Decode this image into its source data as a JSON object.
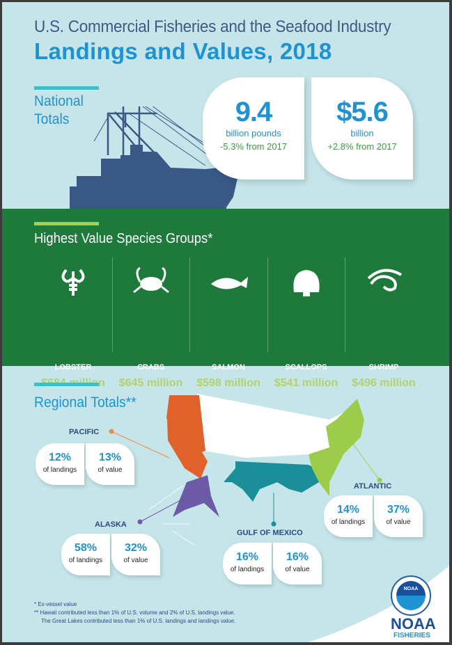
{
  "header": {
    "subtitle": "U.S. Commercial Fisheries and the Seafood Industry",
    "title": "Landings and Values, 2018"
  },
  "national": {
    "heading_line1": "National",
    "heading_line2": "Totals",
    "landings": {
      "value": "9.4",
      "unit": "billion pounds",
      "change": "-5.3% from 2017"
    },
    "value": {
      "value": "$5.6",
      "unit": "billion",
      "change": "+2.8% from 2017"
    }
  },
  "species": {
    "heading": "Highest Value Species Groups*",
    "items": [
      {
        "name": "LOBSTER",
        "value": "$684 million",
        "icon": "lobster-icon"
      },
      {
        "name": "CRABS",
        "value": "$645 million",
        "icon": "crab-icon"
      },
      {
        "name": "SALMON",
        "value": "$598 million",
        "icon": "salmon-icon"
      },
      {
        "name": "SCALLOPS",
        "value": "$541 million",
        "icon": "scallop-icon"
      },
      {
        "name": "SHRIMP",
        "value": "$496 million",
        "icon": "shrimp-icon"
      }
    ]
  },
  "regional": {
    "heading": "Regional Totals**",
    "regions": [
      {
        "name": "PACIFIC",
        "landings": "12%",
        "value": "13%",
        "color": "#e0622a"
      },
      {
        "name": "ALASKA",
        "landings": "58%",
        "value": "32%",
        "color": "#6d5aa6"
      },
      {
        "name": "GULF OF MEXICO",
        "landings": "16%",
        "value": "16%",
        "color": "#1a8f9a"
      },
      {
        "name": "ATLANTIC",
        "landings": "14%",
        "value": "37%",
        "color": "#9ccc4a"
      }
    ],
    "landings_label": "of landings",
    "value_label": "of value"
  },
  "footnotes": [
    "*  Ex-vessel value",
    "** Hawaii contributed less than 1% of U.S. volume and 2% of U.S. landings value.",
    "The Great Lakes contributed less than 1% of U.S. landings and landings value."
  ],
  "logo": {
    "line1": "NOAA",
    "line2": "FISHERIES",
    "emblem": "NOAA"
  },
  "colors": {
    "background": "#c5e5ea",
    "green_band": "#1e7a3b",
    "accent_blue": "#1f93d2",
    "navy": "#3e5b84"
  }
}
